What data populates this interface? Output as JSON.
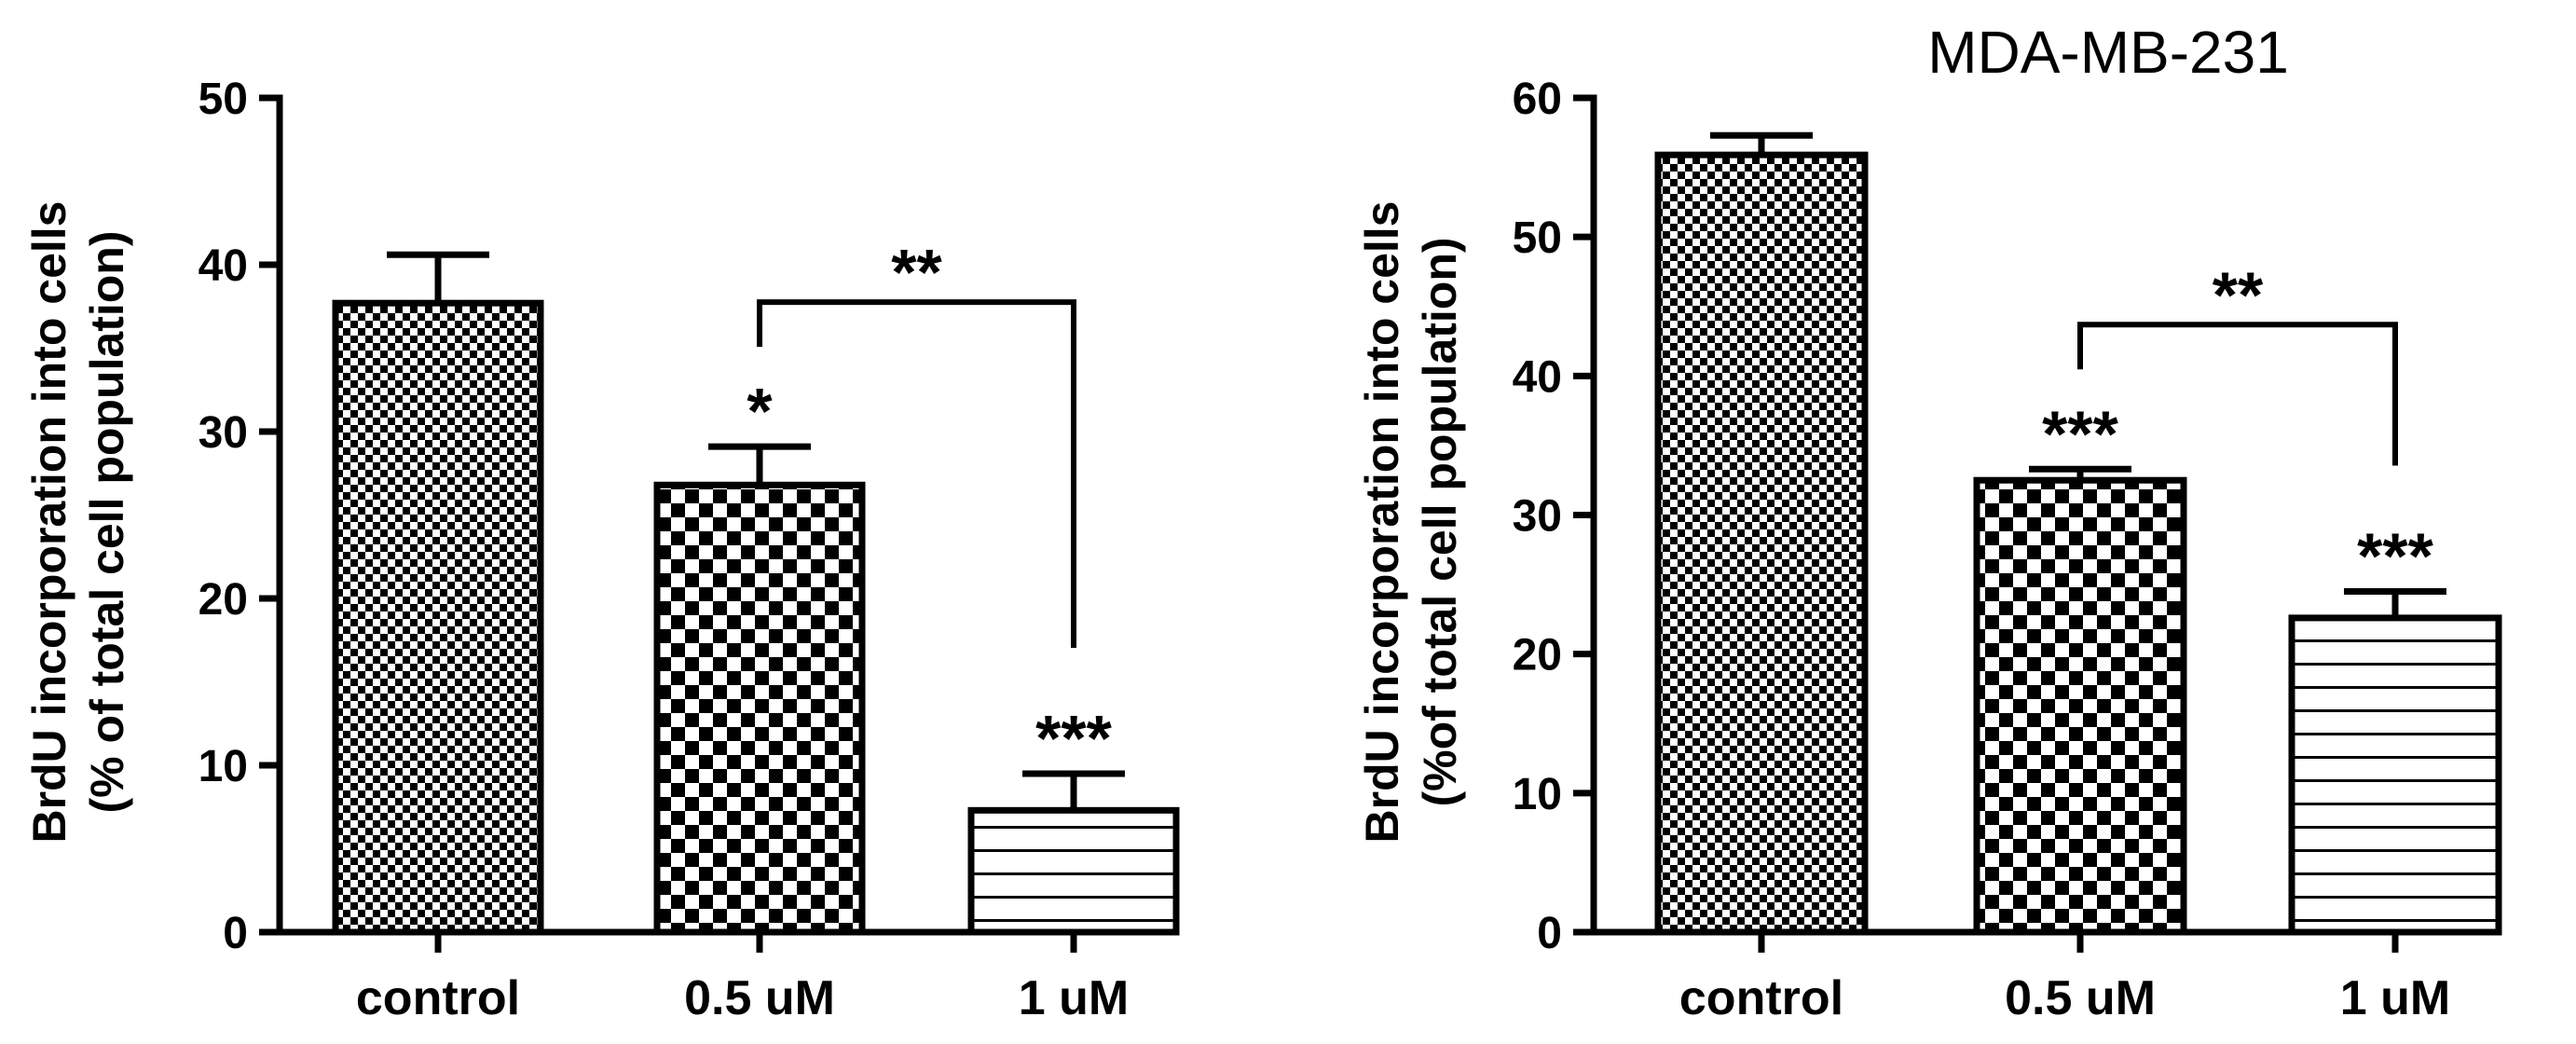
{
  "chart_data": [
    {
      "type": "bar",
      "title": "",
      "ylabel_lines": [
        "BrdU incorporation into cells",
        "(% of total cell population)"
      ],
      "categories": [
        "control",
        "0.5 uM",
        "1 uM"
      ],
      "values": [
        37.7,
        26.8,
        7.3
      ],
      "errors": [
        2.9,
        2.3,
        2.2
      ],
      "patterns": [
        "fine-check",
        "coarse-check",
        "hlines"
      ],
      "significance": [
        "",
        "*",
        "***"
      ],
      "bracket": {
        "from": 1,
        "to": 2,
        "label": "**"
      },
      "ylim": [
        0,
        50
      ],
      "yticks": [
        0,
        10,
        20,
        30,
        40,
        50
      ]
    },
    {
      "type": "bar",
      "title": "MDA-MB-231",
      "ylabel_lines": [
        "BrdU incorporation into cells",
        "(%of total cell population)"
      ],
      "categories": [
        "control",
        "0.5 uM",
        "1 uM"
      ],
      "values": [
        55.9,
        32.5,
        22.6
      ],
      "errors": [
        1.4,
        0.8,
        1.9
      ],
      "patterns": [
        "fine-check",
        "coarse-check",
        "hlines"
      ],
      "significance": [
        "",
        "***",
        "***"
      ],
      "bracket": {
        "from": 1,
        "to": 2,
        "label": "**"
      },
      "ylim": [
        0,
        60
      ],
      "yticks": [
        0,
        10,
        20,
        30,
        40,
        50,
        60
      ]
    }
  ]
}
